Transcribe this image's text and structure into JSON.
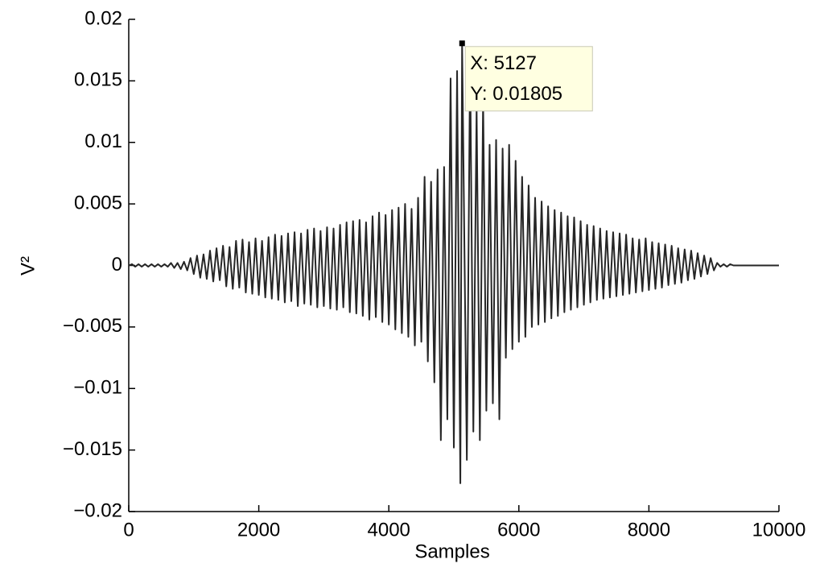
{
  "chart_data": {
    "type": "line",
    "xlabel": "Samples",
    "ylabel": "V²",
    "xlim": [
      0,
      10000
    ],
    "xticks": [
      0,
      2000,
      4000,
      6000,
      8000,
      10000
    ],
    "ylim": [
      -0.02,
      0.02
    ],
    "yticks": [
      {
        "value": -0.02,
        "label": "−0.02"
      },
      {
        "value": -0.015,
        "label": "−0.015"
      },
      {
        "value": -0.01,
        "label": "−0.01"
      },
      {
        "value": -0.005,
        "label": "−0.005"
      },
      0,
      0.005,
      0.01,
      0.015,
      0.02
    ],
    "grid": false,
    "series": [
      {
        "color": "#262626",
        "x": [
          0,
          50,
          100,
          150,
          200,
          250,
          300,
          350,
          400,
          450,
          500,
          550,
          600,
          650,
          700,
          750,
          800,
          850,
          900,
          950,
          1000,
          1050,
          1100,
          1150,
          1200,
          1250,
          1300,
          1350,
          1400,
          1450,
          1500,
          1550,
          1600,
          1650,
          1700,
          1750,
          1800,
          1850,
          1900,
          1950,
          2000,
          2050,
          2100,
          2150,
          2200,
          2250,
          2300,
          2350,
          2400,
          2450,
          2500,
          2550,
          2600,
          2650,
          2700,
          2750,
          2800,
          2850,
          2900,
          2950,
          3000,
          3050,
          3100,
          3150,
          3200,
          3250,
          3300,
          3350,
          3400,
          3450,
          3500,
          3550,
          3600,
          3650,
          3700,
          3750,
          3800,
          3850,
          3900,
          3950,
          4000,
          4050,
          4100,
          4150,
          4200,
          4250,
          4300,
          4350,
          4400,
          4450,
          4500,
          4550,
          4600,
          4650,
          4700,
          4750,
          4800,
          4850,
          4900,
          4950,
          5000,
          5050,
          5100,
          5127,
          5200,
          5250,
          5300,
          5350,
          5400,
          5450,
          5500,
          5550,
          5600,
          5650,
          5700,
          5750,
          5800,
          5850,
          5900,
          5950,
          6000,
          6050,
          6100,
          6150,
          6200,
          6250,
          6300,
          6350,
          6400,
          6450,
          6500,
          6550,
          6600,
          6650,
          6700,
          6750,
          6800,
          6850,
          6900,
          6950,
          7000,
          7050,
          7100,
          7150,
          7200,
          7250,
          7300,
          7350,
          7400,
          7450,
          7500,
          7550,
          7600,
          7650,
          7700,
          7750,
          7800,
          7850,
          7900,
          7950,
          8000,
          8050,
          8100,
          8150,
          8200,
          8250,
          8300,
          8350,
          8400,
          8450,
          8500,
          8550,
          8600,
          8650,
          8700,
          8750,
          8800,
          8850,
          8900,
          8950,
          9000,
          9050,
          9100,
          9150,
          9200,
          9250,
          9300,
          9350,
          9400,
          9450,
          9500,
          9550,
          9600,
          9650,
          9700,
          9750,
          9800,
          9850,
          9900,
          9950,
          10000
        ],
        "values": [
          0,
          0.0001,
          -0.0001,
          0.0001,
          -0.0001,
          0.0001,
          -0.0001,
          0.0001,
          -0.0001,
          0.0001,
          -0.0001,
          0.0001,
          -0.0001,
          0.0002,
          -0.0002,
          0.0002,
          -0.0003,
          0.0003,
          -0.0004,
          0.0006,
          -0.0007,
          0.0008,
          -0.001,
          0.0009,
          -0.0011,
          0.0012,
          -0.0013,
          0.0014,
          -0.0012,
          0.0016,
          -0.0017,
          0.0015,
          -0.0019,
          0.002,
          -0.0018,
          0.0021,
          -0.0022,
          0.0019,
          -0.0023,
          0.0022,
          -0.0024,
          0.002,
          -0.0026,
          0.0023,
          -0.0027,
          0.0025,
          -0.0028,
          0.0024,
          -0.003,
          0.0026,
          -0.0029,
          0.0027,
          -0.0033,
          0.0026,
          -0.0031,
          0.0029,
          -0.0032,
          0.003,
          -0.0034,
          0.0028,
          -0.0033,
          0.0031,
          -0.0035,
          0.003,
          -0.0036,
          0.0033,
          -0.0034,
          0.0035,
          -0.0038,
          0.0036,
          -0.0039,
          0.0037,
          -0.0041,
          0.0035,
          -0.0044,
          0.004,
          -0.0042,
          0.0043,
          -0.0046,
          0.0041,
          -0.0048,
          0.0045,
          -0.0052,
          0.0047,
          -0.0055,
          0.005,
          -0.0058,
          0.0046,
          -0.0065,
          0.0055,
          -0.0062,
          0.0072,
          -0.0078,
          0.0068,
          -0.0095,
          0.0078,
          -0.0142,
          0.008,
          -0.0125,
          0.0152,
          -0.0148,
          0.0158,
          -0.0177,
          0.01805,
          -0.0158,
          0.0168,
          -0.0135,
          0.0128,
          -0.0142,
          0.0135,
          -0.0118,
          0.0098,
          -0.0112,
          0.0102,
          -0.0125,
          0.0095,
          -0.0075,
          0.0098,
          -0.0068,
          0.0085,
          -0.0062,
          0.0072,
          -0.0058,
          0.0065,
          -0.005,
          0.0055,
          -0.0048,
          0.0052,
          -0.0046,
          0.0048,
          -0.0043,
          0.0045,
          -0.0041,
          0.0043,
          -0.0038,
          0.004,
          -0.0036,
          0.0039,
          -0.0034,
          0.0036,
          -0.0032,
          0.0033,
          -0.003,
          0.0032,
          -0.0028,
          0.003,
          -0.0027,
          0.0028,
          -0.0026,
          0.0027,
          -0.0025,
          0.0026,
          -0.0024,
          0.0025,
          -0.0023,
          0.0022,
          -0.0022,
          0.0021,
          -0.0021,
          0.0022,
          -0.002,
          0.0019,
          -0.0019,
          0.0018,
          -0.0018,
          0.0017,
          -0.0016,
          0.0016,
          -0.0015,
          0.0014,
          -0.0014,
          0.0013,
          -0.0012,
          0.0012,
          -0.0011,
          0.001,
          -0.0009,
          0.0008,
          -0.0007,
          0.0006,
          -0.0004,
          0.0002,
          -0.0001,
          0.0001,
          -0.0001,
          0.0001,
          0,
          0,
          0,
          0,
          0,
          0,
          0,
          0,
          0,
          0,
          0,
          0,
          0,
          0,
          0
        ]
      }
    ],
    "annotations": [
      {
        "x": 5127,
        "y": 0.01805,
        "label_x": "X: 5127",
        "label_y": "Y: 0.01805"
      }
    ]
  }
}
